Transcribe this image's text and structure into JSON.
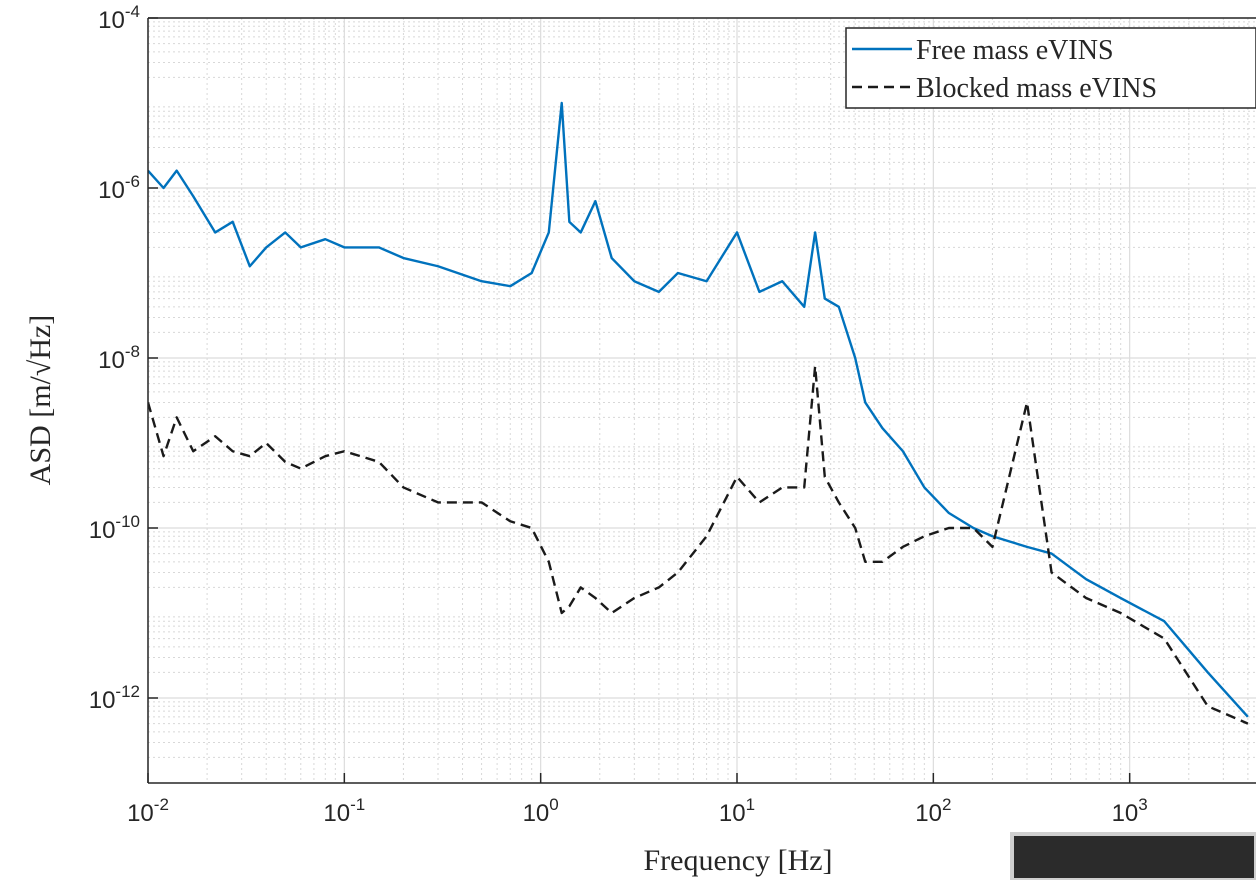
{
  "chart_data": {
    "type": "line",
    "xlabel": "Frequency [Hz]",
    "ylabel": "ASD [m/√Hz]",
    "log_x": true,
    "log_y": true,
    "grid": true,
    "minor_grid": true,
    "legend": "upper right",
    "xlim": [
      0.01,
      4400
    ],
    "ylim": [
      1e-13,
      0.0001
    ],
    "xticks": [
      {
        "value": 0.01,
        "label": "10",
        "exp": "-2"
      },
      {
        "value": 0.1,
        "label": "10",
        "exp": "-1"
      },
      {
        "value": 1,
        "label": "10",
        "exp": "0"
      },
      {
        "value": 10,
        "label": "10",
        "exp": "1"
      },
      {
        "value": 100,
        "label": "10",
        "exp": "2"
      },
      {
        "value": 1000,
        "label": "10",
        "exp": "3"
      }
    ],
    "yticks": [
      {
        "value": 1e-12,
        "label": "10",
        "exp": "-12"
      },
      {
        "value": 1e-10,
        "label": "10",
        "exp": "-10"
      },
      {
        "value": 1e-08,
        "label": "10",
        "exp": "-8"
      },
      {
        "value": 1e-06,
        "label": "10",
        "exp": "-6"
      },
      {
        "value": 0.0001,
        "label": "10",
        "exp": "-4"
      }
    ],
    "x": [
      0.01,
      0.012,
      0.014,
      0.017,
      0.022,
      0.027,
      0.033,
      0.04,
      0.05,
      0.06,
      0.08,
      0.1,
      0.15,
      0.2,
      0.3,
      0.5,
      0.7,
      0.9,
      1.1,
      1.28,
      1.4,
      1.6,
      1.9,
      2.3,
      3,
      4,
      5,
      7,
      10,
      13,
      17,
      22,
      25,
      28,
      33,
      40,
      45,
      55,
      70,
      90,
      120,
      160,
      200,
      300,
      400,
      600,
      900,
      1500,
      2500,
      4000
    ],
    "series": [
      {
        "name": "Free mass eVINS",
        "color": "#0072bd",
        "line_style": "solid",
        "values": [
          1.6e-06,
          1e-06,
          1.6e-06,
          8e-07,
          3e-07,
          4e-07,
          1.2e-07,
          2e-07,
          3e-07,
          2e-07,
          2.5e-07,
          2e-07,
          2e-07,
          1.5e-07,
          1.2e-07,
          8e-08,
          7e-08,
          1e-07,
          3e-07,
          1e-05,
          4e-07,
          3e-07,
          7e-07,
          1.5e-07,
          8e-08,
          6e-08,
          1e-07,
          8e-08,
          3e-07,
          6e-08,
          8e-08,
          4e-08,
          3e-07,
          5e-08,
          4e-08,
          1e-08,
          3e-09,
          1.5e-09,
          8e-10,
          3e-10,
          1.5e-10,
          1e-10,
          8e-11,
          6e-11,
          5e-11,
          2.5e-11,
          1.5e-11,
          8e-12,
          2e-12,
          6e-13
        ]
      },
      {
        "name": "Blocked mass eVINS",
        "color": "#1a1a1a",
        "line_style": "dashed",
        "values": [
          3e-09,
          7e-10,
          2e-09,
          8e-10,
          1.2e-09,
          8e-10,
          7e-10,
          1e-09,
          6e-10,
          5e-10,
          7e-10,
          8e-10,
          6e-10,
          3e-10,
          2e-10,
          2e-10,
          1.2e-10,
          1e-10,
          4e-11,
          1e-11,
          1.2e-11,
          2e-11,
          1.5e-11,
          1e-11,
          1.5e-11,
          2e-11,
          3e-11,
          8e-11,
          4e-10,
          2e-10,
          3e-10,
          3e-10,
          8e-09,
          4e-10,
          2e-10,
          1e-10,
          4e-11,
          4e-11,
          6e-11,
          8e-11,
          1e-10,
          1e-10,
          6e-11,
          3e-09,
          3e-11,
          1.5e-11,
          1e-11,
          5e-12,
          8e-13,
          5e-13
        ]
      }
    ]
  }
}
